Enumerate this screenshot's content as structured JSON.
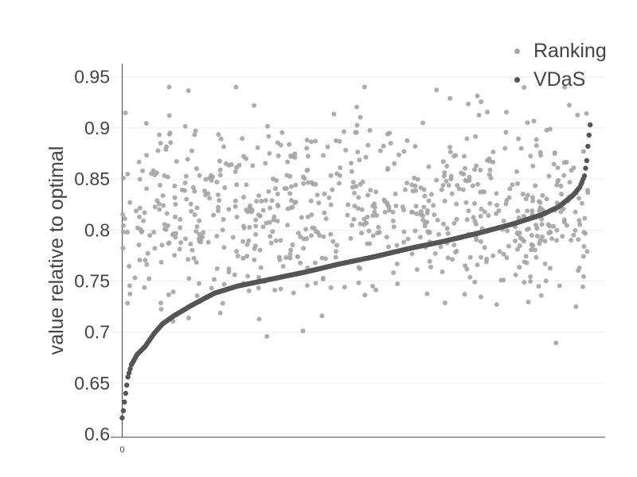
{
  "chart_data": {
    "type": "scatter",
    "title": "",
    "xlabel": "",
    "ylabel": "value relative to optimal",
    "x_ticks": [
      "0"
    ],
    "y_ticks": [
      "0.6",
      "0.65",
      "0.7",
      "0.75",
      "0.8",
      "0.85",
      "0.9",
      "0.95"
    ],
    "xlim": [
      -10,
      420
    ],
    "ylim": [
      0.597,
      0.963
    ],
    "grid": true,
    "legend_position": "top-right",
    "series": [
      {
        "name": "Ranking",
        "color": "#a6a6a6",
        "generation": {
          "type": "scatter-cloud",
          "points": 760,
          "range": [
            0.64,
            0.94
          ],
          "center": 0.82,
          "x_range": [
            0,
            405
          ]
        }
      },
      {
        "name": "VDaS",
        "color": "#555555",
        "anchors": [
          [
            0,
            0.616
          ],
          [
            1,
            0.623
          ],
          [
            3,
            0.64
          ],
          [
            5,
            0.656
          ],
          [
            8,
            0.668
          ],
          [
            13,
            0.678
          ],
          [
            20,
            0.686
          ],
          [
            28,
            0.699
          ],
          [
            35,
            0.708
          ],
          [
            45,
            0.716
          ],
          [
            60,
            0.726
          ],
          [
            80,
            0.738
          ],
          [
            100,
            0.745
          ],
          [
            130,
            0.752
          ],
          [
            160,
            0.759
          ],
          [
            190,
            0.767
          ],
          [
            220,
            0.774
          ],
          [
            250,
            0.782
          ],
          [
            280,
            0.789
          ],
          [
            310,
            0.797
          ],
          [
            340,
            0.806
          ],
          [
            365,
            0.815
          ],
          [
            380,
            0.823
          ],
          [
            392,
            0.834
          ],
          [
            398,
            0.842
          ],
          [
            402,
            0.853
          ],
          [
            404,
            0.868
          ],
          [
            405,
            0.882
          ],
          [
            406,
            0.893
          ],
          [
            407,
            0.903
          ]
        ]
      }
    ]
  }
}
